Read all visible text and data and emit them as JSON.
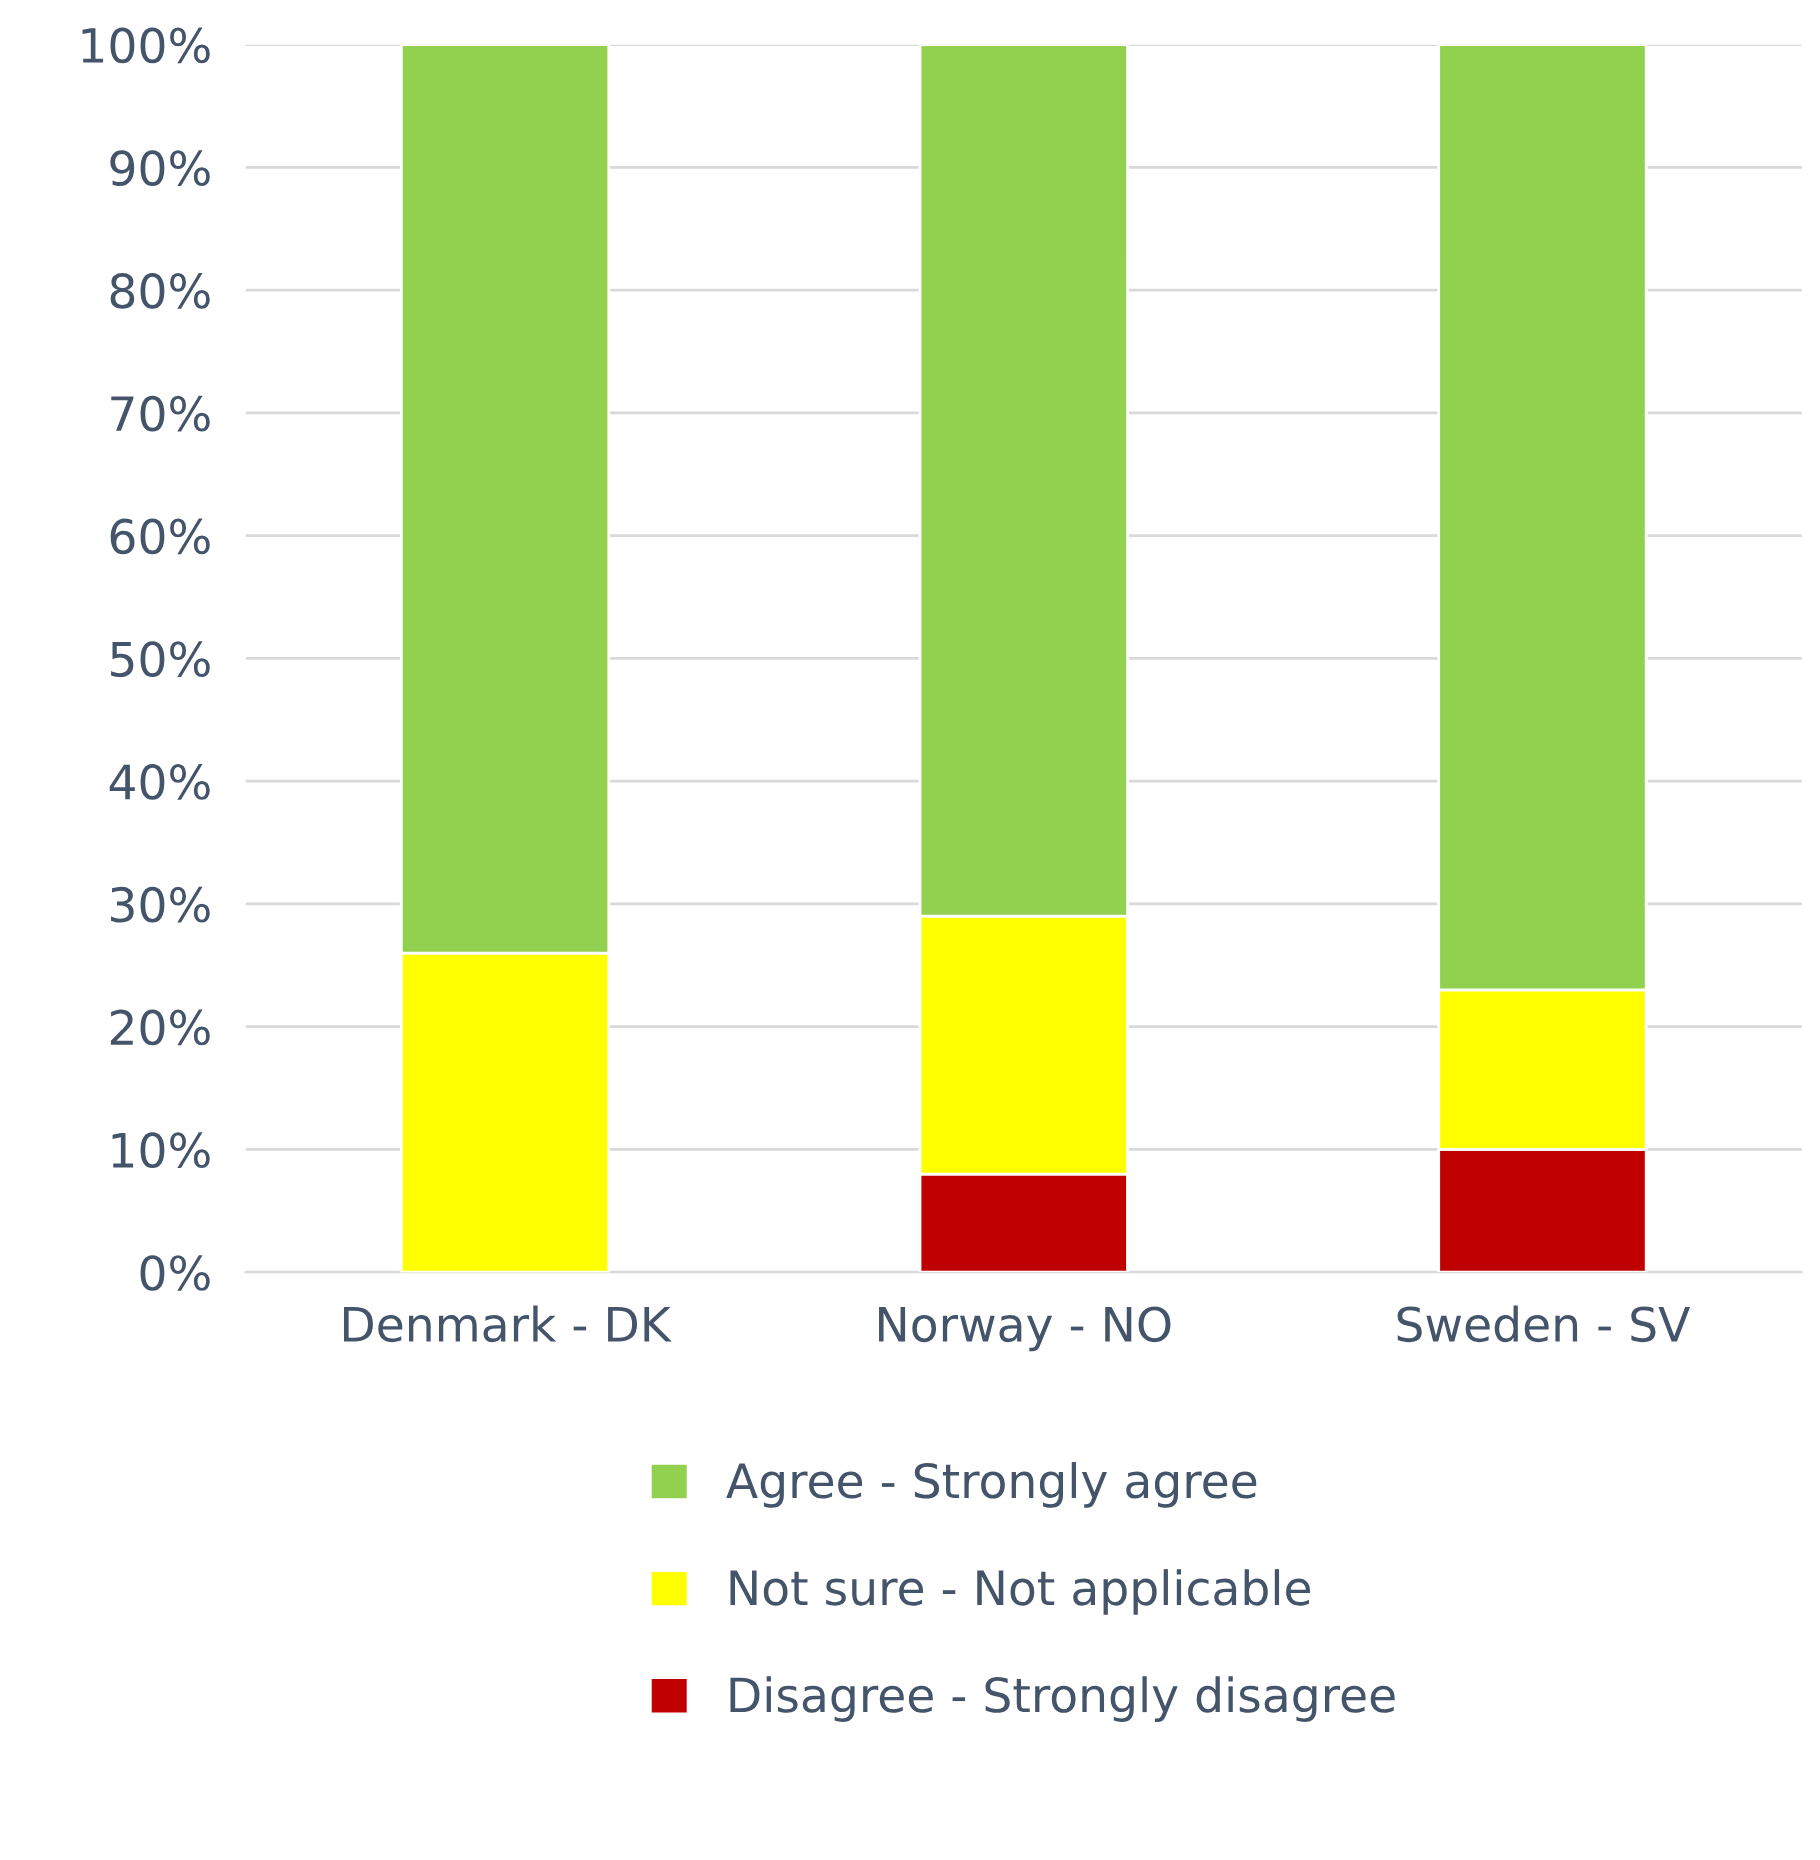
{
  "chart_data": {
    "type": "bar",
    "stacked": true,
    "categories": [
      "Denmark - DK",
      "Norway - NO",
      "Sweden - SV"
    ],
    "series": [
      {
        "name": "Disagree - Strongly disagree",
        "color": "#c00000",
        "values": [
          0,
          8,
          10
        ]
      },
      {
        "name": "Not sure - Not applicable",
        "color": "#ffff00",
        "values": [
          26,
          21,
          13
        ]
      },
      {
        "name": "Agree - Strongly agree",
        "color": "#92d050",
        "values": [
          74,
          71,
          77
        ]
      }
    ],
    "ylim": [
      0,
      100
    ],
    "yticks": [
      {
        "value": 0,
        "label": "0%"
      },
      {
        "value": 10,
        "label": "10%"
      },
      {
        "value": 20,
        "label": "20%"
      },
      {
        "value": 30,
        "label": "30%"
      },
      {
        "value": 40,
        "label": "40%"
      },
      {
        "value": 50,
        "label": "50%"
      },
      {
        "value": 60,
        "label": "60%"
      },
      {
        "value": 70,
        "label": "70%"
      },
      {
        "value": 80,
        "label": "80%"
      },
      {
        "value": 90,
        "label": "90%"
      },
      {
        "value": 100,
        "label": "100%"
      }
    ],
    "grid": "y",
    "legend": "bottom"
  }
}
